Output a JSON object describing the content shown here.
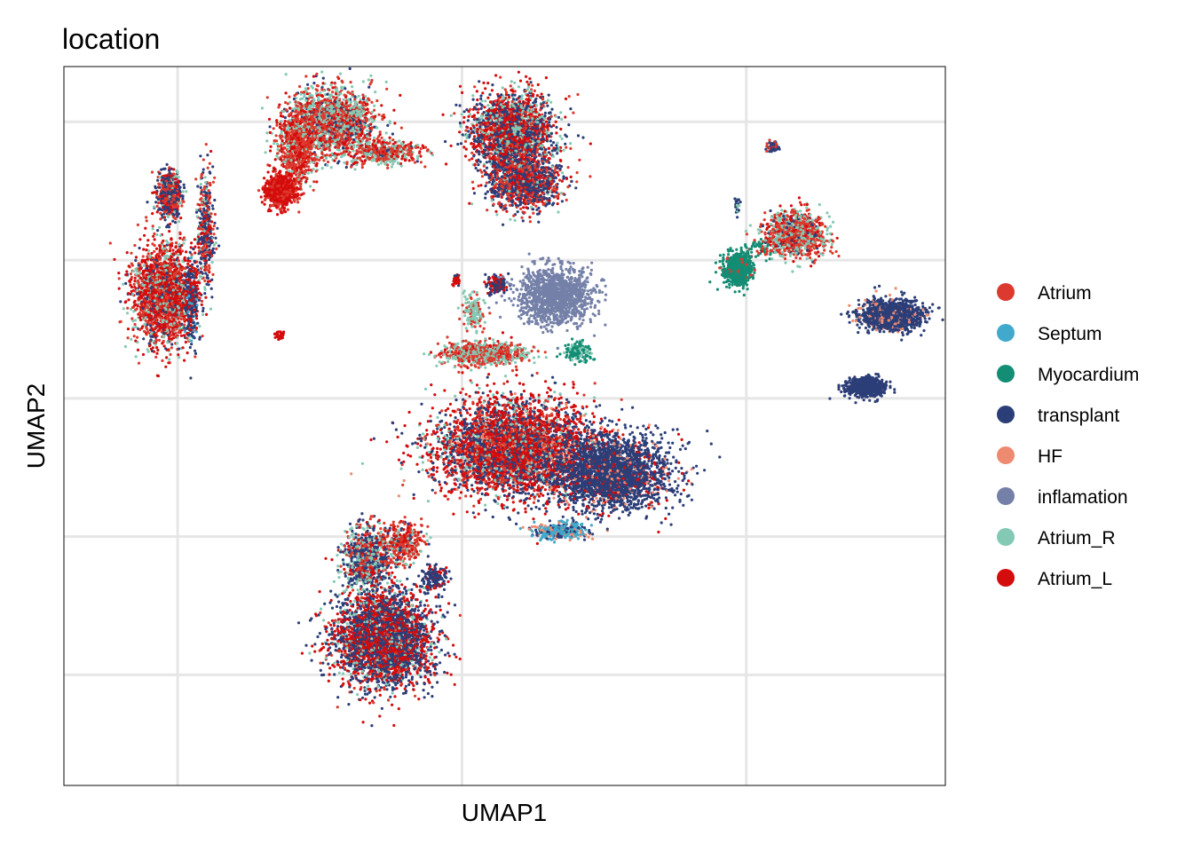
{
  "chart_data": {
    "type": "scatter",
    "title": "location",
    "xlabel": "UMAP1",
    "ylabel": "UMAP2",
    "xlim": [
      -8,
      23
    ],
    "ylim": [
      -16,
      10
    ],
    "x_gridlines": [
      -4,
      6,
      16
    ],
    "y_gridlines": [
      8,
      3,
      -2,
      -7,
      -12
    ],
    "tick_labels_shown": false,
    "grid": true,
    "legend_position": "right",
    "series": [
      {
        "name": "Atrium",
        "color": "#DC3A2E"
      },
      {
        "name": "Septum",
        "color": "#41A9CB"
      },
      {
        "name": "Myocardium",
        "color": "#138D74"
      },
      {
        "name": "transplant",
        "color": "#2C3E78"
      },
      {
        "name": "HF",
        "color": "#EE8A70"
      },
      {
        "name": "inflamation",
        "color": "#7480A8"
      },
      {
        "name": "Atrium_R",
        "color": "#84C9B4"
      },
      {
        "name": "Atrium_L",
        "color": "#D40C0C"
      }
    ],
    "clusters": [
      {
        "cx": 1.4,
        "cy": 8.0,
        "sx": 1.3,
        "sy": 1.0,
        "n": 1800,
        "mix": {
          "Atrium_R": 0.38,
          "Atrium": 0.3,
          "Atrium_L": 0.2,
          "transplant": 0.12
        }
      },
      {
        "cx": 0.2,
        "cy": 7.0,
        "sx": 0.55,
        "sy": 1.1,
        "n": 700,
        "mix": {
          "Atrium": 0.5,
          "Atrium_L": 0.35,
          "Atrium_R": 0.15
        }
      },
      {
        "cx": -0.4,
        "cy": 5.5,
        "sx": 0.4,
        "sy": 0.45,
        "n": 700,
        "mix": {
          "Atrium_L": 0.75,
          "Atrium": 0.25
        }
      },
      {
        "cx": 3.3,
        "cy": 6.9,
        "sx": 1.0,
        "sy": 0.35,
        "n": 450,
        "mix": {
          "Atrium": 0.45,
          "Atrium_R": 0.3,
          "Atrium_L": 0.2,
          "transplant": 0.05
        }
      },
      {
        "cx": 7.8,
        "cy": 7.6,
        "sx": 1.2,
        "sy": 1.2,
        "n": 2300,
        "mix": {
          "Atrium_L": 0.35,
          "transplant": 0.33,
          "Atrium_R": 0.2,
          "Atrium": 0.12
        }
      },
      {
        "cx": 8.2,
        "cy": 5.8,
        "sx": 1.0,
        "sy": 0.8,
        "n": 1100,
        "mix": {
          "transplant": 0.45,
          "Atrium": 0.3,
          "Atrium_L": 0.2,
          "Atrium_R": 0.05
        }
      },
      {
        "cx": -4.3,
        "cy": 5.4,
        "sx": 0.35,
        "sy": 0.65,
        "n": 600,
        "mix": {
          "transplant": 0.4,
          "Atrium": 0.3,
          "Atrium_L": 0.2,
          "Atrium_R": 0.1
        }
      },
      {
        "cx": -3.0,
        "cy": 4.2,
        "sx": 0.25,
        "sy": 1.7,
        "n": 350,
        "mix": {
          "transplant": 0.45,
          "Atrium": 0.3,
          "Atrium_L": 0.15,
          "Atrium_R": 0.1
        }
      },
      {
        "cx": -4.5,
        "cy": 1.8,
        "sx": 0.9,
        "sy": 1.45,
        "n": 2100,
        "mix": {
          "Atrium_L": 0.45,
          "Atrium": 0.25,
          "Atrium_R": 0.18,
          "transplant": 0.12
        }
      },
      {
        "cx": -3.5,
        "cy": 1.5,
        "sx": 0.2,
        "sy": 1.3,
        "n": 250,
        "mix": {
          "transplant": 0.6,
          "Atrium_L": 0.3,
          "Septum": 0.1
        }
      },
      {
        "cx": 7.8,
        "cy": -3.8,
        "sx": 2.3,
        "sy": 1.4,
        "n": 4500,
        "mix": {
          "Atrium_L": 0.42,
          "transplant": 0.3,
          "Atrium": 0.14,
          "Atrium_R": 0.1,
          "HF": 0.04
        }
      },
      {
        "cx": 11.3,
        "cy": -4.7,
        "sx": 1.7,
        "sy": 1.1,
        "n": 2500,
        "mix": {
          "transplant": 0.82,
          "HF": 0.08,
          "Atrium_L": 0.1
        }
      },
      {
        "cx": 9.5,
        "cy": -6.8,
        "sx": 0.8,
        "sy": 0.25,
        "n": 300,
        "mix": {
          "Septum": 0.55,
          "transplant": 0.25,
          "HF": 0.2
        }
      },
      {
        "cx": 6.8,
        "cy": -0.4,
        "sx": 1.2,
        "sy": 0.35,
        "n": 800,
        "mix": {
          "Atrium": 0.45,
          "Atrium_R": 0.45,
          "Atrium_L": 0.1
        }
      },
      {
        "cx": 6.4,
        "cy": 1.1,
        "sx": 0.3,
        "sy": 0.55,
        "n": 150,
        "mix": {
          "Atrium_R": 0.7,
          "Atrium": 0.3
        }
      },
      {
        "cx": 7.2,
        "cy": 2.1,
        "sx": 0.35,
        "sy": 0.3,
        "n": 120,
        "mix": {
          "transplant": 0.55,
          "Atrium_L": 0.45
        }
      },
      {
        "cx": 10.1,
        "cy": -0.3,
        "sx": 0.4,
        "sy": 0.3,
        "n": 140,
        "mix": {
          "Myocardium": 0.75,
          "Atrium_R": 0.25
        }
      },
      {
        "cx": 3.2,
        "cy": -10.7,
        "sx": 1.4,
        "sy": 1.4,
        "n": 3300,
        "mix": {
          "transplant": 0.48,
          "Atrium_L": 0.35,
          "Atrium_R": 0.1,
          "Atrium": 0.07
        }
      },
      {
        "cx": 2.6,
        "cy": -7.8,
        "sx": 0.7,
        "sy": 1.0,
        "n": 800,
        "mix": {
          "transplant": 0.35,
          "Atrium_R": 0.3,
          "Atrium": 0.2,
          "Atrium_L": 0.15
        }
      },
      {
        "cx": 3.9,
        "cy": -7.2,
        "sx": 0.6,
        "sy": 0.6,
        "n": 350,
        "mix": {
          "Atrium": 0.55,
          "Atrium_L": 0.2,
          "Atrium_R": 0.15,
          "transplant": 0.1
        }
      },
      {
        "cx": 5.0,
        "cy": -8.5,
        "sx": 0.4,
        "sy": 0.35,
        "n": 150,
        "mix": {
          "transplant": 0.8,
          "Atrium_L": 0.2
        }
      },
      {
        "cx": 9.3,
        "cy": 1.7,
        "sx": 1.1,
        "sy": 0.85,
        "n": 1300,
        "mix": {
          "inflamation": 1.0
        }
      },
      {
        "cx": 15.7,
        "cy": 2.7,
        "sx": 0.4,
        "sy": 0.45,
        "n": 800,
        "mix": {
          "Myocardium": 0.95,
          "Atrium": 0.05
        }
      },
      {
        "cx": 16.5,
        "cy": 3.4,
        "sx": 0.55,
        "sy": 0.3,
        "n": 60,
        "mix": {
          "Myocardium": 0.85,
          "Atrium": 0.15
        }
      },
      {
        "cx": 17.7,
        "cy": 3.9,
        "sx": 0.85,
        "sy": 0.65,
        "n": 1100,
        "mix": {
          "Atrium": 0.45,
          "Atrium_R": 0.3,
          "Atrium_L": 0.15,
          "transplant": 0.1
        }
      },
      {
        "cx": 21.1,
        "cy": 1.0,
        "sx": 0.9,
        "sy": 0.45,
        "n": 1300,
        "mix": {
          "transplant": 0.88,
          "HF": 0.12
        }
      },
      {
        "cx": 20.2,
        "cy": -1.6,
        "sx": 0.55,
        "sy": 0.28,
        "n": 700,
        "mix": {
          "transplant": 1.0
        }
      },
      {
        "cx": 16.9,
        "cy": 7.1,
        "sx": 0.15,
        "sy": 0.18,
        "n": 70,
        "mix": {
          "transplant": 0.6,
          "Atrium": 0.4
        }
      },
      {
        "cx": 15.7,
        "cy": 5.0,
        "sx": 0.07,
        "sy": 0.3,
        "n": 25,
        "mix": {
          "transplant": 0.7,
          "Atrium_R": 0.3
        }
      },
      {
        "cx": 5.8,
        "cy": 2.3,
        "sx": 0.12,
        "sy": 0.18,
        "n": 35,
        "mix": {
          "Atrium_L": 0.6,
          "transplant": 0.4
        }
      },
      {
        "cx": -0.4,
        "cy": 0.3,
        "sx": 0.12,
        "sy": 0.12,
        "n": 30,
        "mix": {
          "Atrium_L": 1.0
        }
      }
    ]
  }
}
